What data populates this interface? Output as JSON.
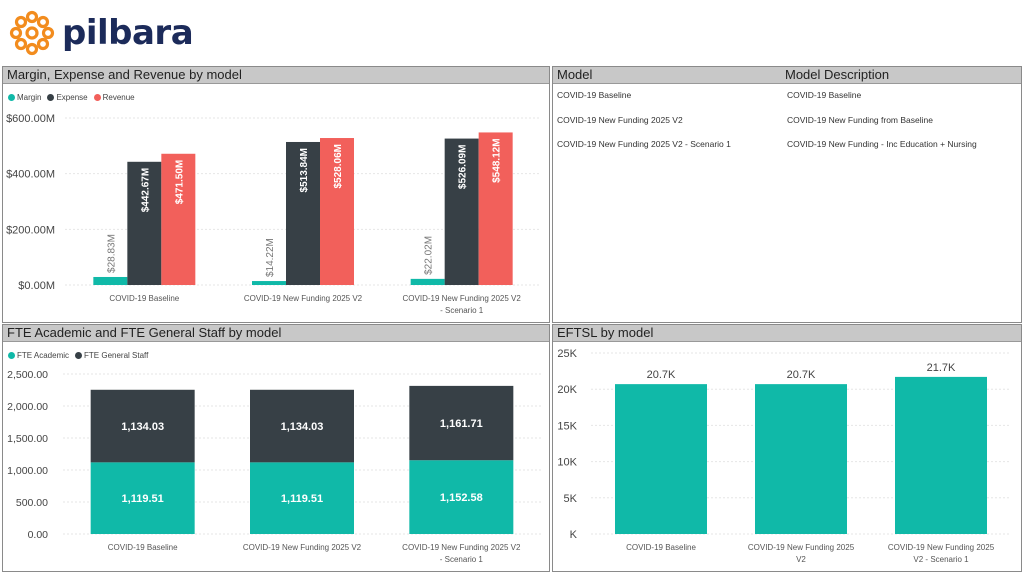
{
  "brand": {
    "name": "pilbara"
  },
  "colors": {
    "teal": "#10b9a8",
    "dark": "#374046",
    "red": "#f2605b"
  },
  "panels": {
    "margin": {
      "title": "Margin, Expense and Revenue by model"
    },
    "table": {
      "headers": [
        "Model",
        "Model Description"
      ],
      "rows": [
        [
          "COVID-19 Baseline",
          "COVID-19 Baseline"
        ],
        [
          "COVID-19 New Funding 2025 V2",
          "COVID-19 New Funding from Baseline"
        ],
        [
          "COVID-19 New Funding 2025 V2 - Scenario 1",
          "COVID-19 New Funding - Inc Education + Nursing"
        ]
      ]
    },
    "fte": {
      "title": "FTE Academic and FTE General Staff by model"
    },
    "eftsl": {
      "title": "EFTSL by model"
    }
  },
  "chart_data": [
    {
      "type": "bar",
      "title": "Margin, Expense and Revenue by model",
      "categories": [
        [
          "COVID-19 Baseline"
        ],
        [
          "COVID-19 New Funding 2025 V2"
        ],
        [
          "COVID-19 New Funding 2025 V2",
          "- Scenario 1"
        ]
      ],
      "series": [
        {
          "name": "Margin",
          "color": "#10b9a8",
          "values": [
            28.83,
            14.22,
            22.02
          ],
          "labels": [
            "$28.83M",
            "$14.22M",
            "$22.02M"
          ]
        },
        {
          "name": "Expense",
          "color": "#374046",
          "values": [
            442.67,
            513.84,
            526.09
          ],
          "labels": [
            "$442.67M",
            "$513.84M",
            "$526.09M"
          ]
        },
        {
          "name": "Revenue",
          "color": "#f2605b",
          "values": [
            471.5,
            528.06,
            548.12
          ],
          "labels": [
            "$471.50M",
            "$528.06M",
            "$548.12M"
          ]
        }
      ],
      "yticks": [
        0,
        200,
        400,
        600
      ],
      "ytick_labels": [
        "$0.00M",
        "$200.00M",
        "$400.00M",
        "$600.00M"
      ],
      "ylim": [
        0,
        600
      ],
      "legend": "top-left"
    },
    {
      "type": "bar",
      "stacked": true,
      "title": "FTE Academic and FTE General Staff by model",
      "categories": [
        [
          "COVID-19 Baseline"
        ],
        [
          "COVID-19 New Funding 2025 V2"
        ],
        [
          "COVID-19 New Funding 2025 V2",
          "- Scenario 1"
        ]
      ],
      "series": [
        {
          "name": "FTE Academic",
          "color": "#10b9a8",
          "values": [
            1119.51,
            1119.51,
            1152.58
          ],
          "labels": [
            "1,119.51",
            "1,119.51",
            "1,152.58"
          ]
        },
        {
          "name": "FTE General Staff",
          "color": "#374046",
          "values": [
            1134.03,
            1134.03,
            1161.71
          ],
          "labels": [
            "1,134.03",
            "1,134.03",
            "1,161.71"
          ]
        }
      ],
      "yticks": [
        0,
        500,
        1000,
        1500,
        2000,
        2500
      ],
      "ytick_labels": [
        "0.00",
        "500.00",
        "1,000.00",
        "1,500.00",
        "2,000.00",
        "2,500.00"
      ],
      "ylim": [
        0,
        2500
      ],
      "legend": "top-left"
    },
    {
      "type": "bar",
      "title": "EFTSL by model",
      "categories": [
        [
          "COVID-19 Baseline"
        ],
        [
          "COVID-19 New Funding 2025",
          "V2"
        ],
        [
          "COVID-19 New Funding 2025",
          "V2 - Scenario 1"
        ]
      ],
      "series": [
        {
          "color": "#10b9a8",
          "values": [
            20700,
            20700,
            21700
          ],
          "labels": [
            "20.7K",
            "20.7K",
            "21.7K"
          ]
        }
      ],
      "yticks": [
        0,
        5000,
        10000,
        15000,
        20000,
        25000
      ],
      "ytick_labels": [
        "K",
        "5K",
        "10K",
        "15K",
        "20K",
        "25K"
      ],
      "ylim": [
        0,
        25000
      ]
    }
  ]
}
